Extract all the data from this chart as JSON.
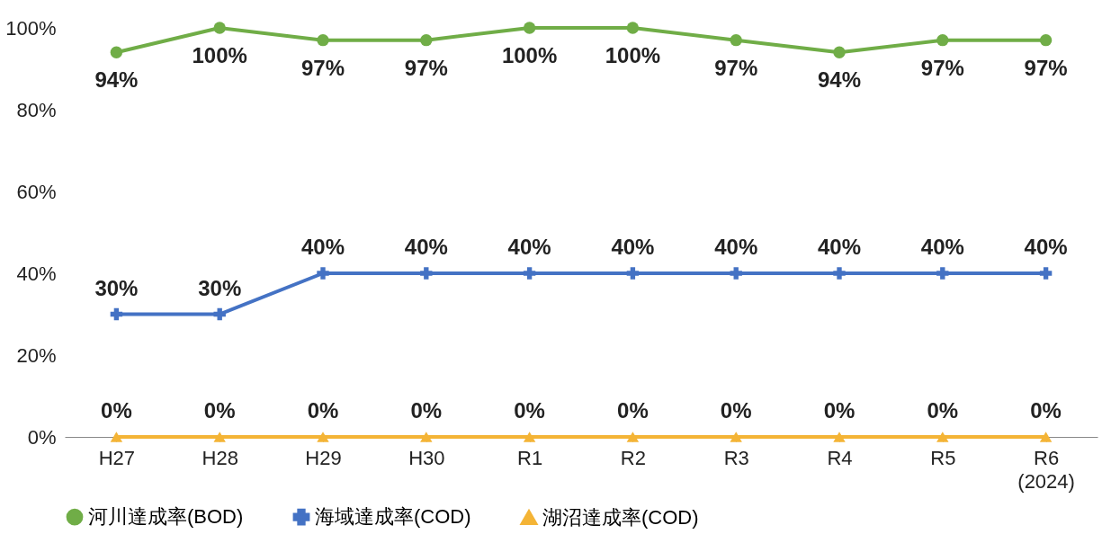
{
  "chart_data": {
    "type": "line",
    "categories": [
      "H27",
      "H28",
      "H29",
      "H30",
      "R1",
      "R2",
      "R3",
      "R4",
      "R5",
      "R6\n(2024)"
    ],
    "series": [
      {
        "name": "河川達成率(BOD)",
        "color": "#70ad47",
        "marker": "circle",
        "values": [
          94,
          100,
          97,
          97,
          100,
          100,
          97,
          94,
          97,
          97
        ],
        "value_labels": [
          "94%",
          "100%",
          "97%",
          "97%",
          "100%",
          "100%",
          "97%",
          "94%",
          "97%",
          "97%"
        ]
      },
      {
        "name": "海域達成率(COD)",
        "color": "#4472c4",
        "marker": "cross",
        "values": [
          30,
          30,
          40,
          40,
          40,
          40,
          40,
          40,
          40,
          40
        ],
        "value_labels": [
          "30%",
          "30%",
          "40%",
          "40%",
          "40%",
          "40%",
          "40%",
          "40%",
          "40%",
          "40%"
        ]
      },
      {
        "name": "湖沼達成率(COD)",
        "color": "#f4b436",
        "marker": "triangle",
        "values": [
          0,
          0,
          0,
          0,
          0,
          0,
          0,
          0,
          0,
          0
        ],
        "value_labels": [
          "0%",
          "0%",
          "0%",
          "0%",
          "0%",
          "0%",
          "0%",
          "0%",
          "0%",
          "0%"
        ]
      }
    ],
    "ylim": [
      0,
      100
    ],
    "yticks": [
      {
        "value": 0,
        "label": "0%"
      },
      {
        "value": 20,
        "label": "20%"
      },
      {
        "value": 40,
        "label": "40%"
      },
      {
        "value": 60,
        "label": "60%"
      },
      {
        "value": 80,
        "label": "80%"
      },
      {
        "value": 100,
        "label": "100%"
      }
    ],
    "grid": false,
    "legend": "bottom",
    "line_style": "solid"
  }
}
